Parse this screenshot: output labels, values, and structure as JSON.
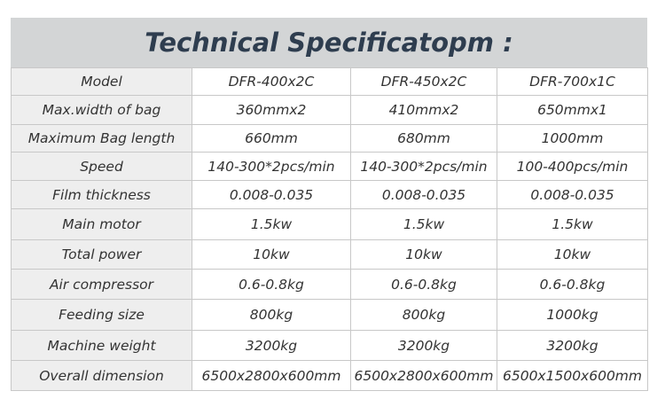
{
  "title": "Technical Specificatopm :",
  "table": {
    "rows": [
      [
        "Model",
        "DFR-400x2C",
        "DFR-450x2C",
        "DFR-700x1C"
      ],
      [
        "Max.width of bag",
        "360mmx2",
        "410mmx2",
        "650mmx1"
      ],
      [
        "Maximum Bag length",
        "660mm",
        "680mm",
        "1000mm"
      ],
      [
        "Speed",
        "140-300*2pcs/min",
        "140-300*2pcs/min",
        "100-400pcs/min"
      ],
      [
        "Film thickness",
        "0.008-0.035",
        "0.008-0.035",
        "0.008-0.035"
      ],
      [
        "Main motor",
        "1.5kw",
        "1.5kw",
        "1.5kw"
      ],
      [
        "Total power",
        "10kw",
        "10kw",
        "10kw"
      ],
      [
        "Air compressor",
        "0.6-0.8kg",
        "0.6-0.8kg",
        "0.6-0.8kg"
      ],
      [
        "Feeding size",
        "800kg",
        "800kg",
        "1000kg"
      ],
      [
        "Machine weight",
        "3200kg",
        "3200kg",
        "3200kg"
      ],
      [
        "Overall dimension",
        "6500x2800x600mm",
        "6500x2800x600mm",
        "6500x1500x600mm"
      ]
    ]
  }
}
